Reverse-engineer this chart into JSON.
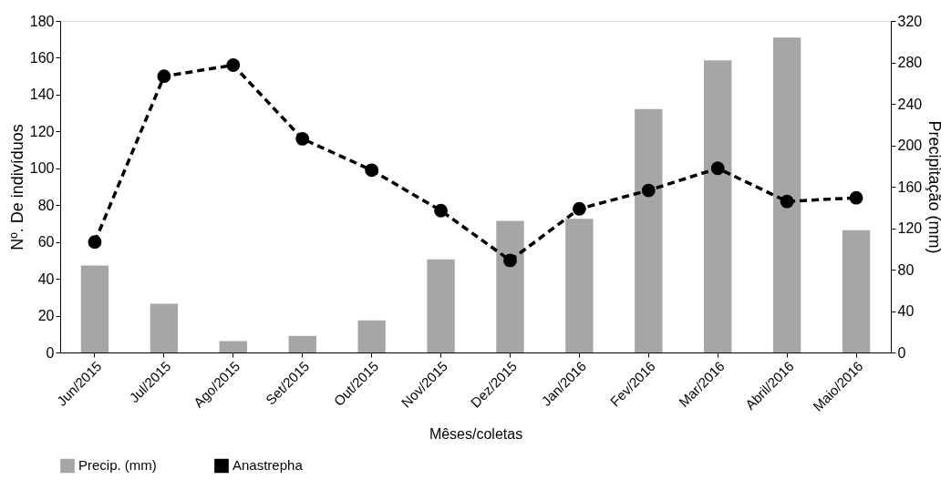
{
  "chart_data": {
    "type": "line",
    "xlabel": "Mêses/coletas",
    "ylabel": "Nº. De indivíduos",
    "y2label": "Precipitação (mm)",
    "categories": [
      "Jun/2015",
      "Jul/2015",
      "Ago/2015",
      "Set/2015",
      "Out/2015",
      "Nov/2015",
      "Dez/2015",
      "Jan/2016",
      "Fev/2016",
      "Mar/2016",
      "Abril/2016",
      "Maio/2016"
    ],
    "series": [
      {
        "name": "Precip. (mm)",
        "type": "bar",
        "axis": "y2",
        "color": "#a6a6a6",
        "values": [
          84,
          47,
          11,
          16,
          31,
          90,
          127,
          129,
          235,
          282,
          304,
          118
        ]
      },
      {
        "name": "Anastrepha",
        "color": "#000000",
        "values": [
          60,
          150,
          156,
          116,
          99,
          77,
          50,
          78,
          88,
          100,
          82,
          84
        ]
      }
    ],
    "ylim": [
      0,
      180
    ],
    "yticks": [
      0,
      20,
      40,
      60,
      80,
      100,
      120,
      140,
      160,
      180
    ],
    "y2lim": [
      0,
      320
    ],
    "y2ticks": [
      0,
      40,
      80,
      120,
      160,
      200,
      240,
      280,
      320
    ],
    "marker": "circle",
    "line_style": "dashed",
    "grid": false,
    "legend": "bottom"
  }
}
